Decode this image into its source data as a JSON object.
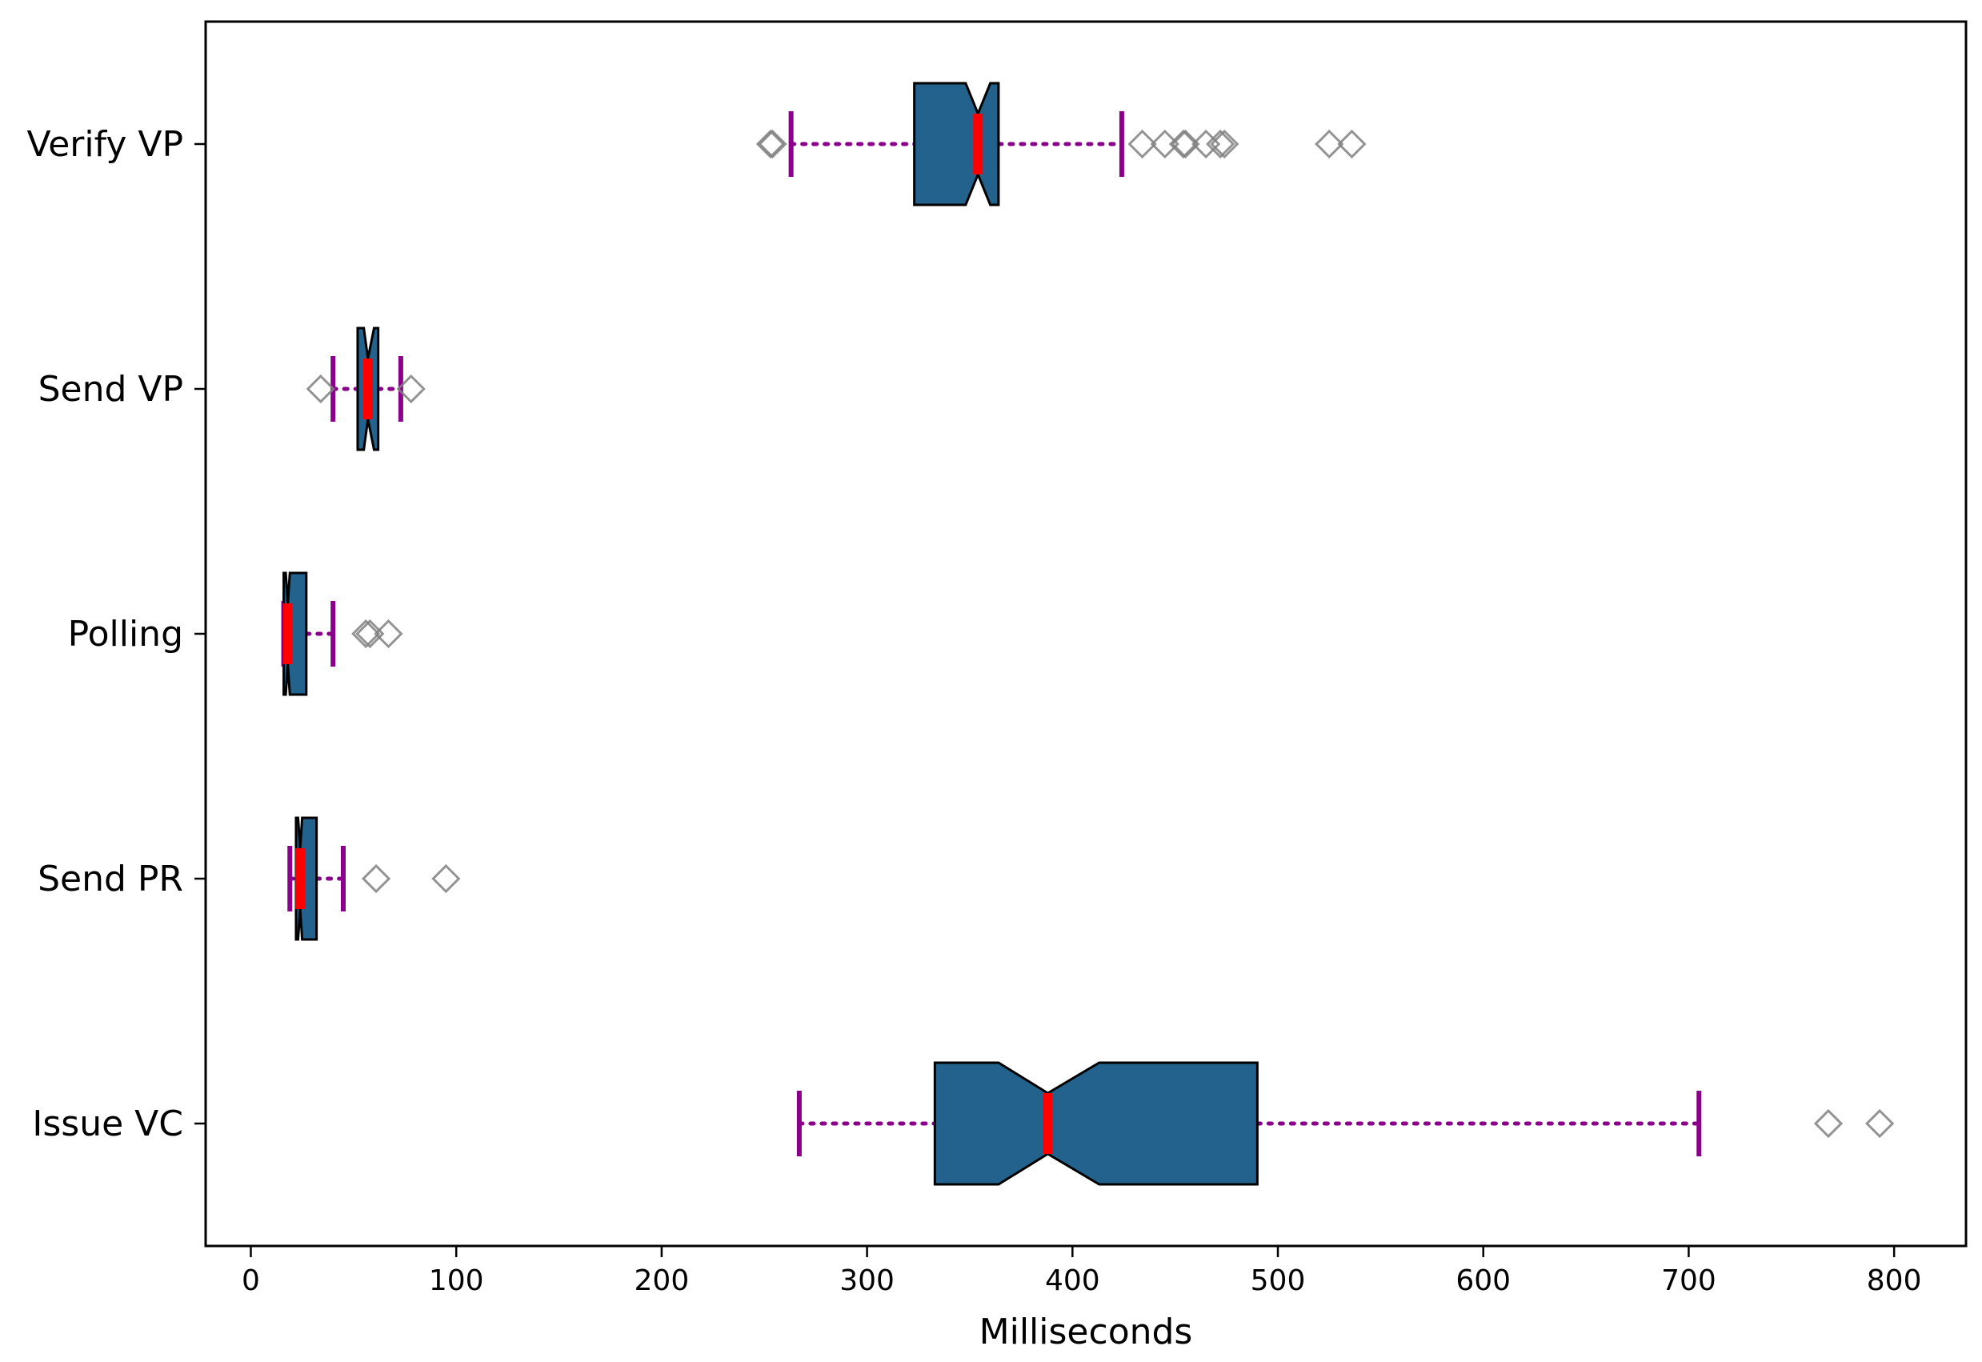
{
  "chart_data": {
    "type": "boxplot",
    "orientation": "horizontal",
    "notched": true,
    "xlabel": "Milliseconds",
    "xlim": [
      -22,
      835
    ],
    "xticks": [
      0,
      100,
      200,
      300,
      400,
      500,
      600,
      700,
      800
    ],
    "grid": false,
    "categories": [
      "Verify VP",
      "Send VP",
      "Polling",
      "Send PR",
      "Issue VC"
    ],
    "colors": {
      "box_fill": "#23628c",
      "box_edge": "#000000",
      "median": "#ff0000",
      "whisker": "#8b008b",
      "flier_edge": "#808080",
      "flier_dense": "#333333"
    },
    "boxes": [
      {
        "label": "Verify VP",
        "whislo": 263,
        "q1": 323,
        "notch_lo": 348,
        "med": 354,
        "notch_hi": 360,
        "q3": 364,
        "whishi": 424,
        "fliers": [
          254,
          253,
          434,
          445,
          455,
          454,
          465,
          472,
          474,
          525,
          536
        ]
      },
      {
        "label": "Send VP",
        "whislo": 40,
        "q1": 52,
        "notch_lo": 55,
        "med": 57,
        "notch_hi": 60,
        "q3": 62,
        "whishi": 73,
        "fliers": [
          34,
          78
        ]
      },
      {
        "label": "Polling",
        "whislo": 16,
        "q1": 16,
        "notch_lo": 17,
        "med": 18,
        "notch_hi": 19,
        "q3": 27,
        "whishi": 40,
        "fliers": [
          56,
          58,
          67
        ]
      },
      {
        "label": "Send PR",
        "whislo": 19,
        "q1": 22,
        "notch_lo": 23,
        "med": 24,
        "notch_hi": 25,
        "q3": 32,
        "whishi": 45,
        "fliers": [
          61,
          95
        ]
      },
      {
        "label": "Issue VC",
        "whislo": 267,
        "q1": 333,
        "notch_lo": 364,
        "med": 388,
        "notch_hi": 413,
        "q3": 490,
        "whishi": 705,
        "fliers": [
          768,
          793
        ]
      }
    ]
  }
}
